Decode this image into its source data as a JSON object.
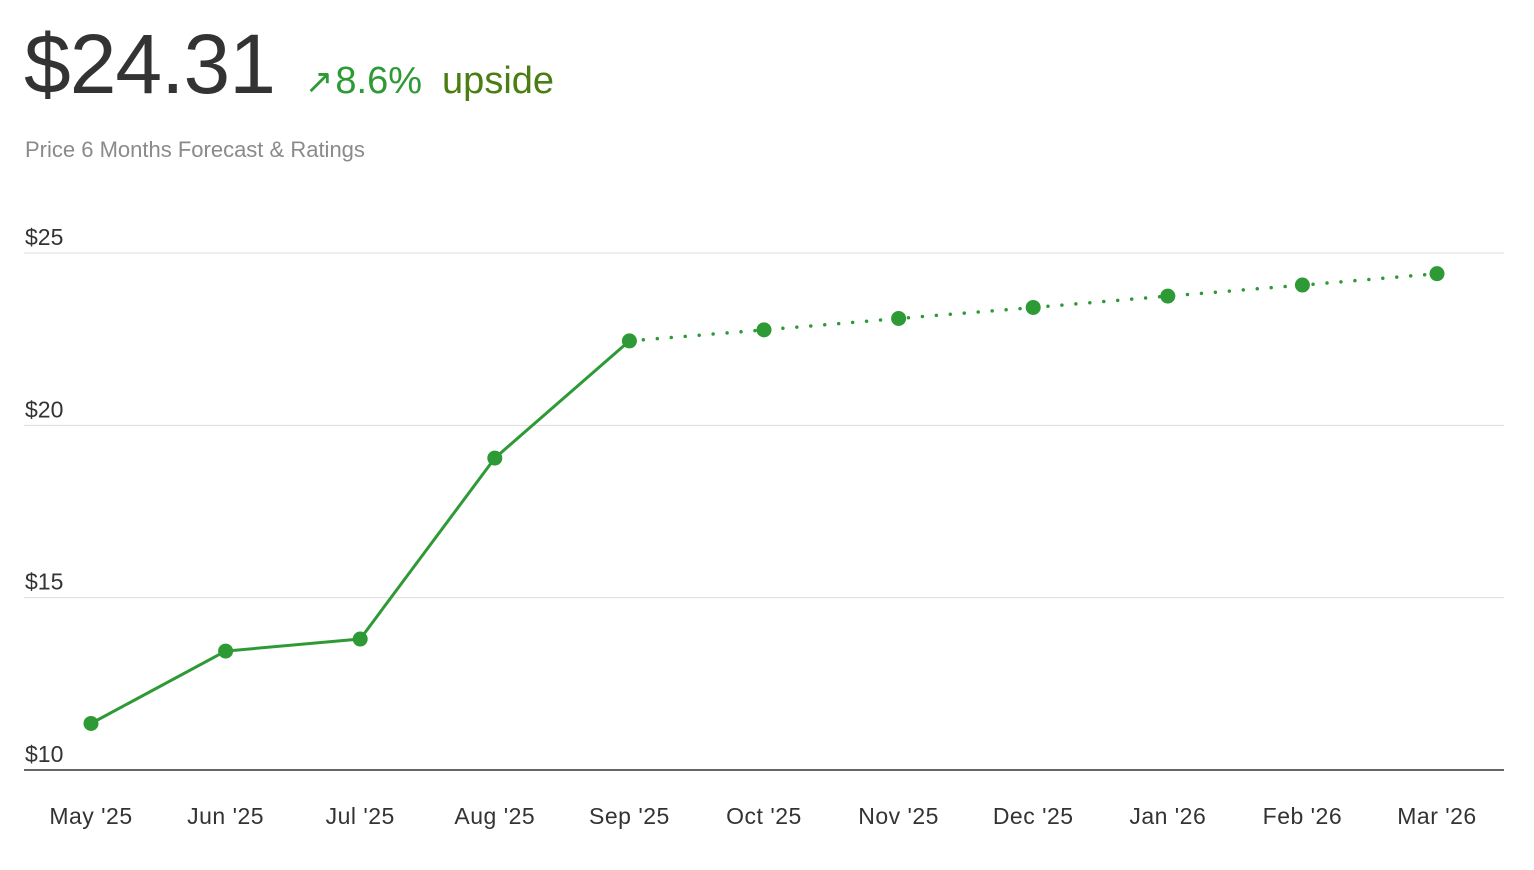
{
  "header": {
    "price": "$24.31",
    "change_arrow": "↗",
    "change_pct": "8.6%",
    "change_word": "upside",
    "subtitle": "Price 6 Months Forecast & Ratings"
  },
  "colors": {
    "line": "#2e9a36",
    "grid": "#dddddd",
    "axis": "#333333",
    "upside_text": "#4a7d12"
  },
  "chart_data": {
    "type": "line",
    "categories": [
      "May '25",
      "Jun '25",
      "Jul '25",
      "Aug '25",
      "Sep '25",
      "Oct '25",
      "Nov '25",
      "Dec '25",
      "Jan '26",
      "Feb '26",
      "Mar '26"
    ],
    "y_ticks": [
      10,
      15,
      20,
      25
    ],
    "y_tick_labels": [
      "$10",
      "$15",
      "$20",
      "$25"
    ],
    "ylim": [
      10,
      25
    ],
    "grid": true,
    "series": [
      {
        "style": "solid",
        "x": [
          "May '25",
          "Jun '25",
          "Jul '25",
          "Aug '25",
          "Sep '25"
        ],
        "values": [
          11.35,
          13.45,
          13.8,
          19.05,
          22.45
        ]
      },
      {
        "style": "dotted",
        "x": [
          "Sep '25",
          "Oct '25",
          "Nov '25",
          "Dec '25",
          "Jan '26",
          "Feb '26",
          "Mar '26"
        ],
        "values": [
          22.45,
          22.77,
          23.1,
          23.42,
          23.75,
          24.07,
          24.4
        ]
      }
    ]
  }
}
